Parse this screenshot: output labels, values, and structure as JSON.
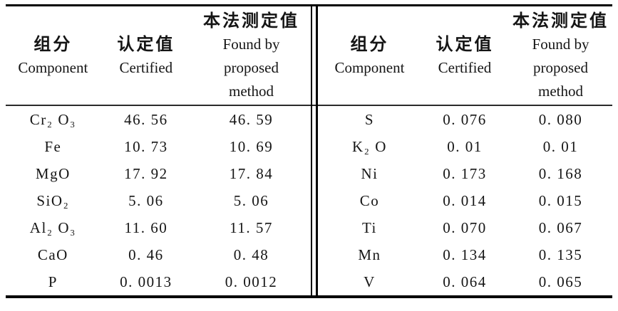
{
  "colors": {
    "background": "#ffffff",
    "text": "#151515",
    "rule": "#000000"
  },
  "table": {
    "halves": [
      {
        "header": {
          "col1_zh": "组分",
          "col1_en": "Component",
          "col2_zh": "认定值",
          "col2_en": "Certified",
          "col3_zh": "本法测定值",
          "col3_en_line1": "Found by",
          "col3_en_line2": "proposed",
          "col3_en_line3": "method"
        },
        "rows": [
          {
            "component": "Cr₂ O₃",
            "certified": "46. 56",
            "found": "46. 59"
          },
          {
            "component": "Fe",
            "certified": "10. 73",
            "found": "10. 69"
          },
          {
            "component": "MgO",
            "certified": "17. 92",
            "found": "17. 84"
          },
          {
            "component": "SiO₂",
            "certified": "5. 06",
            "found": "5. 06"
          },
          {
            "component": "Al₂ O₃",
            "certified": "11. 60",
            "found": "11. 57"
          },
          {
            "component": "CaO",
            "certified": "0. 46",
            "found": "0. 48"
          },
          {
            "component": "P",
            "certified": "0. 0013",
            "found": "0. 0012"
          }
        ]
      },
      {
        "header": {
          "col1_zh": "组分",
          "col1_en": "Component",
          "col2_zh": "认定值",
          "col2_en": "Certified",
          "col3_zh": "本法测定值",
          "col3_en_line1": "Found by",
          "col3_en_line2": "proposed",
          "col3_en_line3": "method"
        },
        "rows": [
          {
            "component": "S",
            "certified": "0. 076",
            "found": "0. 080"
          },
          {
            "component": "K₂ O",
            "certified": "0. 01",
            "found": "0. 01"
          },
          {
            "component": "Ni",
            "certified": "0. 173",
            "found": "0. 168"
          },
          {
            "component": "Co",
            "certified": "0. 014",
            "found": "0. 015"
          },
          {
            "component": "Ti",
            "certified": "0. 070",
            "found": "0. 067"
          },
          {
            "component": "Mn",
            "certified": "0. 134",
            "found": "0. 135"
          },
          {
            "component": "V",
            "certified": "0. 064",
            "found": "0. 065"
          }
        ]
      }
    ]
  }
}
